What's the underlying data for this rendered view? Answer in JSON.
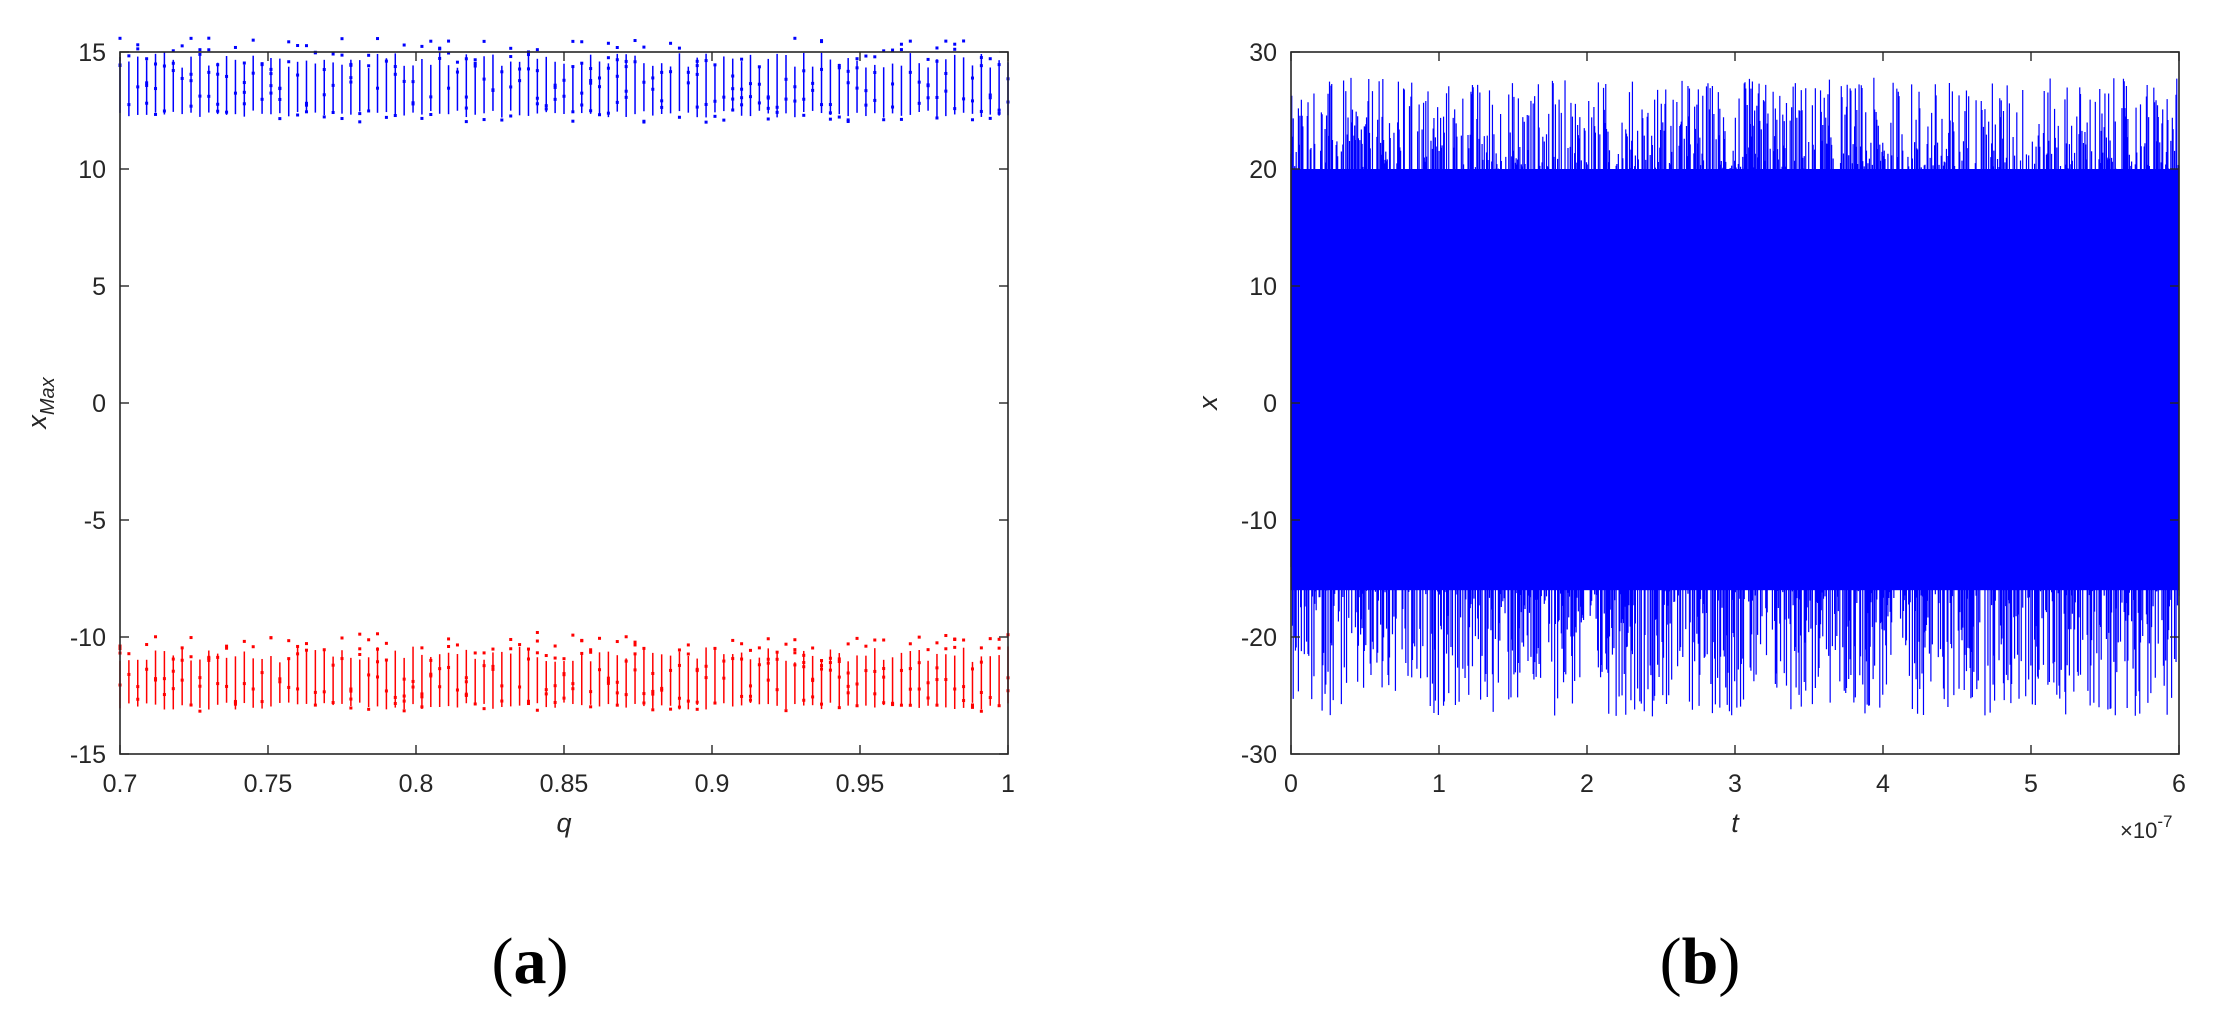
{
  "colors": {
    "upper": "#0000ff",
    "lower": "#ff0000",
    "series": "#0000ff",
    "axis": "#262626"
  },
  "chart_data": [
    {
      "type": "scatter",
      "panel_label": {
        "open": "(",
        "letter": "a",
        "close": ")"
      },
      "xlabel": "q",
      "ylabel": {
        "base": "x",
        "sub": "Max"
      },
      "xlim": [
        0.7,
        1.0
      ],
      "ylim": [
        -15,
        15
      ],
      "xticks": [
        0.7,
        0.75,
        0.8,
        0.85,
        0.9,
        0.95,
        1
      ],
      "xtick_labels": [
        "0.7",
        "0.75",
        "0.8",
        "0.85",
        "0.9",
        "0.95",
        "1"
      ],
      "yticks": [
        -15,
        -10,
        -5,
        0,
        5,
        10,
        15
      ],
      "ytick_labels": [
        "-15",
        "-10",
        "-5",
        "0",
        "5",
        "10",
        "15"
      ],
      "grid": false,
      "q_step": 0.003,
      "series": [
        {
          "color": "upper",
          "y_range": [
            12.0,
            15.6
          ],
          "typical_range": [
            12.2,
            15.0
          ]
        },
        {
          "color": "lower",
          "y_range": [
            -13.2,
            -9.8
          ],
          "typical_range": [
            -13.1,
            -10.4
          ]
        }
      ]
    },
    {
      "type": "line",
      "panel_label": {
        "open": "(",
        "letter": "b",
        "close": ")"
      },
      "xlabel": "t",
      "ylabel": "x",
      "x_multiplier": "×10",
      "x_exponent": "-7",
      "xlim": [
        0,
        6
      ],
      "ylim": [
        -30,
        30
      ],
      "xticks": [
        0,
        1,
        2,
        3,
        4,
        5,
        6
      ],
      "xtick_labels": [
        "0",
        "1",
        "2",
        "3",
        "4",
        "5",
        "6"
      ],
      "yticks": [
        -30,
        -20,
        -10,
        0,
        10,
        20,
        30
      ],
      "ytick_labels": [
        "-30",
        "-20",
        "-10",
        "0",
        "10",
        "20",
        "30"
      ],
      "grid": false,
      "series": [
        {
          "color": "series",
          "dense_band": [
            -16,
            20
          ],
          "extremes": [
            -26.8,
            27.8
          ]
        }
      ]
    }
  ]
}
